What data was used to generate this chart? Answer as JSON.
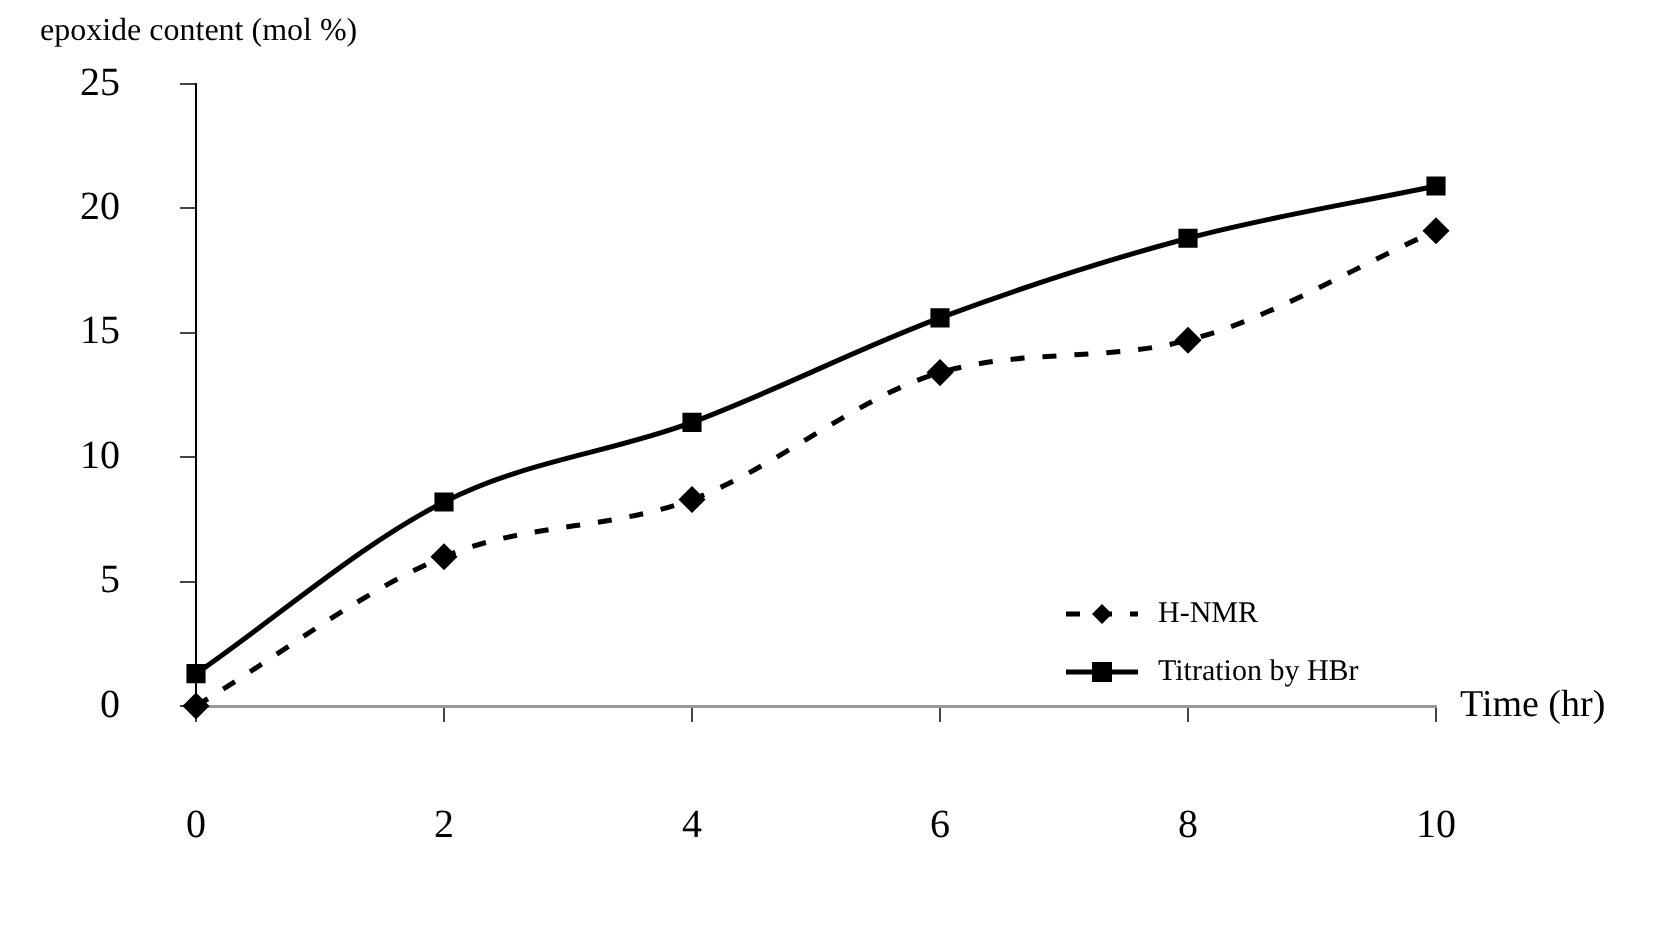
{
  "chart_data": {
    "type": "line",
    "ylabel": "epoxide content (mol %)",
    "xlabel": "Time (hr)",
    "x": [
      0,
      2,
      4,
      6,
      8,
      10
    ],
    "xlim": [
      0,
      10
    ],
    "xticks": [
      0,
      2,
      4,
      6,
      8,
      10
    ],
    "ylim": [
      0,
      25
    ],
    "yticks": [
      0,
      5,
      10,
      15,
      20,
      25
    ],
    "series": [
      {
        "name": "H-NMR",
        "color": "#000000",
        "values": [
          0,
          6.0,
          8.3,
          13.4,
          14.7,
          19.1
        ],
        "marker": "diamond",
        "line_style": "dashed"
      },
      {
        "name": "Titration by HBr",
        "color": "#000000",
        "values": [
          1.3,
          8.2,
          11.4,
          15.6,
          18.8,
          20.9
        ],
        "marker": "square",
        "line_style": "solid"
      }
    ],
    "legend": "bottom right",
    "grid": false
  }
}
